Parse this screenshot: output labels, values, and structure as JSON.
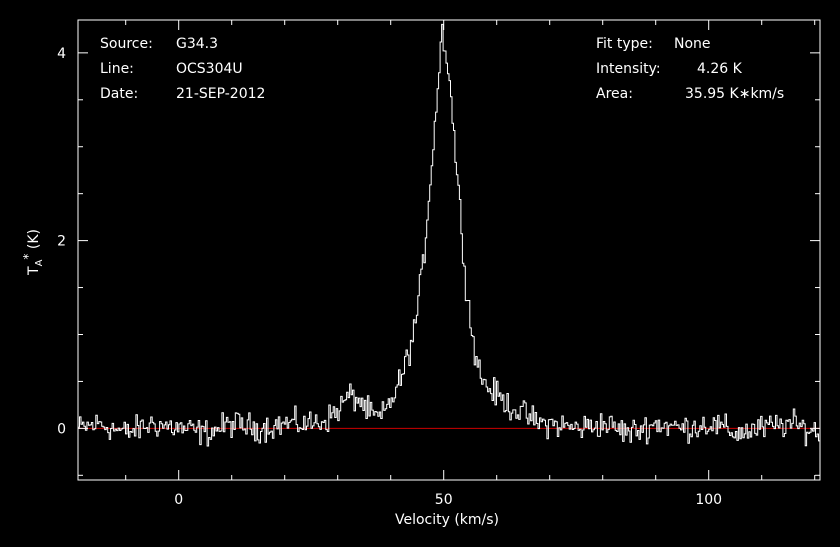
{
  "header_left": {
    "source_label": "Source:",
    "source_value": "G34.3",
    "line_label": "Line:",
    "line_value": "OCS304U",
    "date_label": "Date:",
    "date_value": "21-SEP-2012"
  },
  "header_right": {
    "fit_label": "Fit type:",
    "fit_value": "None",
    "intensity_label": "Intensity:",
    "intensity_value": "4.26 K",
    "area_label": "Area:",
    "area_value": "35.95 K∗km/s"
  },
  "colors": {
    "background": "#000000",
    "spectrum": "#ffffff",
    "baseline": "#cc0000",
    "axes": "#ffffff"
  },
  "chart_data": {
    "type": "line",
    "title": "",
    "xlabel": "Velocity (km/s)",
    "ylabel": "T_A^* (K)",
    "xlim": [
      -19,
      121
    ],
    "ylim": [
      -0.55,
      4.35
    ],
    "xticks": [
      0,
      50,
      100
    ],
    "yticks": [
      0,
      2,
      4
    ],
    "baseline_y": 0,
    "grid": false,
    "series": [
      {
        "style": "step",
        "x": [
          -19,
          -15,
          -10,
          -5,
          0,
          5,
          10,
          15,
          20,
          25,
          28,
          30,
          32,
          34,
          36,
          38,
          40,
          42,
          44,
          45,
          46,
          47,
          48,
          49,
          49.5,
          50,
          50.5,
          51,
          52,
          53,
          54,
          55,
          56,
          57,
          58,
          60,
          62,
          65,
          68,
          70,
          75,
          80,
          85,
          90,
          95,
          100,
          105,
          110,
          115,
          121
        ],
        "y": [
          0.0,
          0.05,
          -0.05,
          0.05,
          0.0,
          -0.05,
          0.05,
          0.0,
          0.05,
          0.05,
          0.1,
          0.2,
          0.35,
          0.3,
          0.15,
          0.1,
          0.3,
          0.55,
          0.95,
          1.3,
          1.75,
          2.4,
          3.1,
          3.8,
          4.26,
          4.1,
          3.95,
          3.7,
          3.0,
          2.3,
          1.6,
          1.1,
          0.75,
          0.55,
          0.45,
          0.35,
          0.25,
          0.15,
          0.05,
          0.05,
          0.0,
          0.05,
          -0.05,
          0.05,
          0.0,
          0.05,
          -0.05,
          0.0,
          0.05,
          -0.05
        ]
      }
    ]
  }
}
